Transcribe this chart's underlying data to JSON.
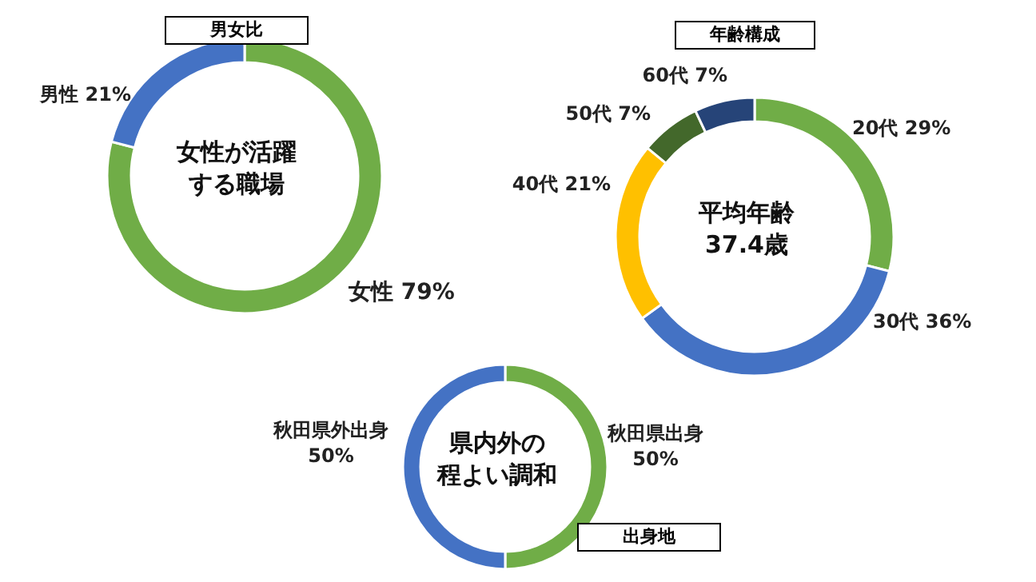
{
  "chart_data": [
    {
      "type": "donut",
      "title": "男女比",
      "categories": [
        "女性",
        "男性"
      ],
      "values": [
        79,
        21
      ],
      "colors": [
        "#70ad47",
        "#4472c4"
      ],
      "value_labels": [
        "79%",
        "21%"
      ],
      "annotations": [
        "女性が活躍",
        "する職場"
      ]
    },
    {
      "type": "donut",
      "title": "年齢構成",
      "categories": [
        "20代",
        "30代",
        "40代",
        "50代",
        "60代"
      ],
      "values": [
        29,
        36,
        21,
        7,
        7
      ],
      "colors": [
        "#70ad47",
        "#4472c4",
        "#ffc000",
        "#43682b",
        "#264478"
      ],
      "value_labels": [
        "29%",
        "36%",
        "21%",
        "7%",
        "7%"
      ],
      "annotations": [
        "平均年齢",
        "37.4歳"
      ]
    },
    {
      "type": "donut",
      "title": "出身地",
      "categories": [
        "秋田県出身",
        "秋田県外出身"
      ],
      "values": [
        50,
        50
      ],
      "colors": [
        "#70ad47",
        "#4472c4"
      ],
      "value_labels": [
        "50%",
        "50%"
      ],
      "annotations": [
        "県内外の",
        "程よい調和"
      ]
    }
  ]
}
